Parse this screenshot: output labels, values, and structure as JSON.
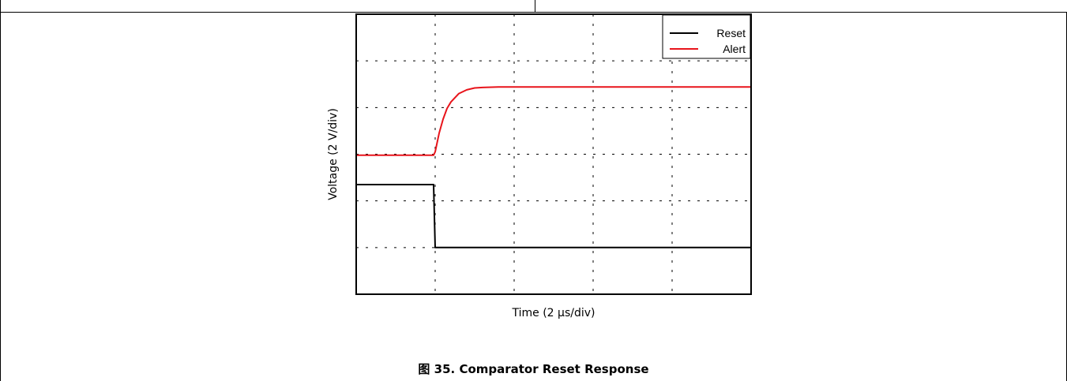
{
  "caption": "图 35. Comparator Reset Response",
  "chart_data": {
    "type": "line",
    "title": "",
    "xlabel": "Time (2 μs/div)",
    "ylabel": "Voltage (2 V/div)",
    "x_divisions": 5,
    "y_divisions": 6,
    "xlim": [
      0,
      5
    ],
    "ylim": [
      0,
      6
    ],
    "grid": true,
    "grid_style": "dotted",
    "legend_position": "top-right",
    "series": [
      {
        "name": "Reset",
        "color": "#000000",
        "x": [
          0,
          0.98,
          1.0,
          5
        ],
        "y": [
          2.35,
          2.35,
          1.0,
          1.0
        ]
      },
      {
        "name": "Alert",
        "color": "#e8141b",
        "x": [
          0,
          0.98,
          1.0,
          1.05,
          1.1,
          1.15,
          1.2,
          1.3,
          1.4,
          1.5,
          1.6,
          1.8,
          2.0,
          5
        ],
        "y": [
          2.98,
          2.98,
          3.05,
          3.45,
          3.75,
          3.98,
          4.12,
          4.3,
          4.38,
          4.42,
          4.43,
          4.44,
          4.44,
          4.44
        ]
      }
    ]
  }
}
